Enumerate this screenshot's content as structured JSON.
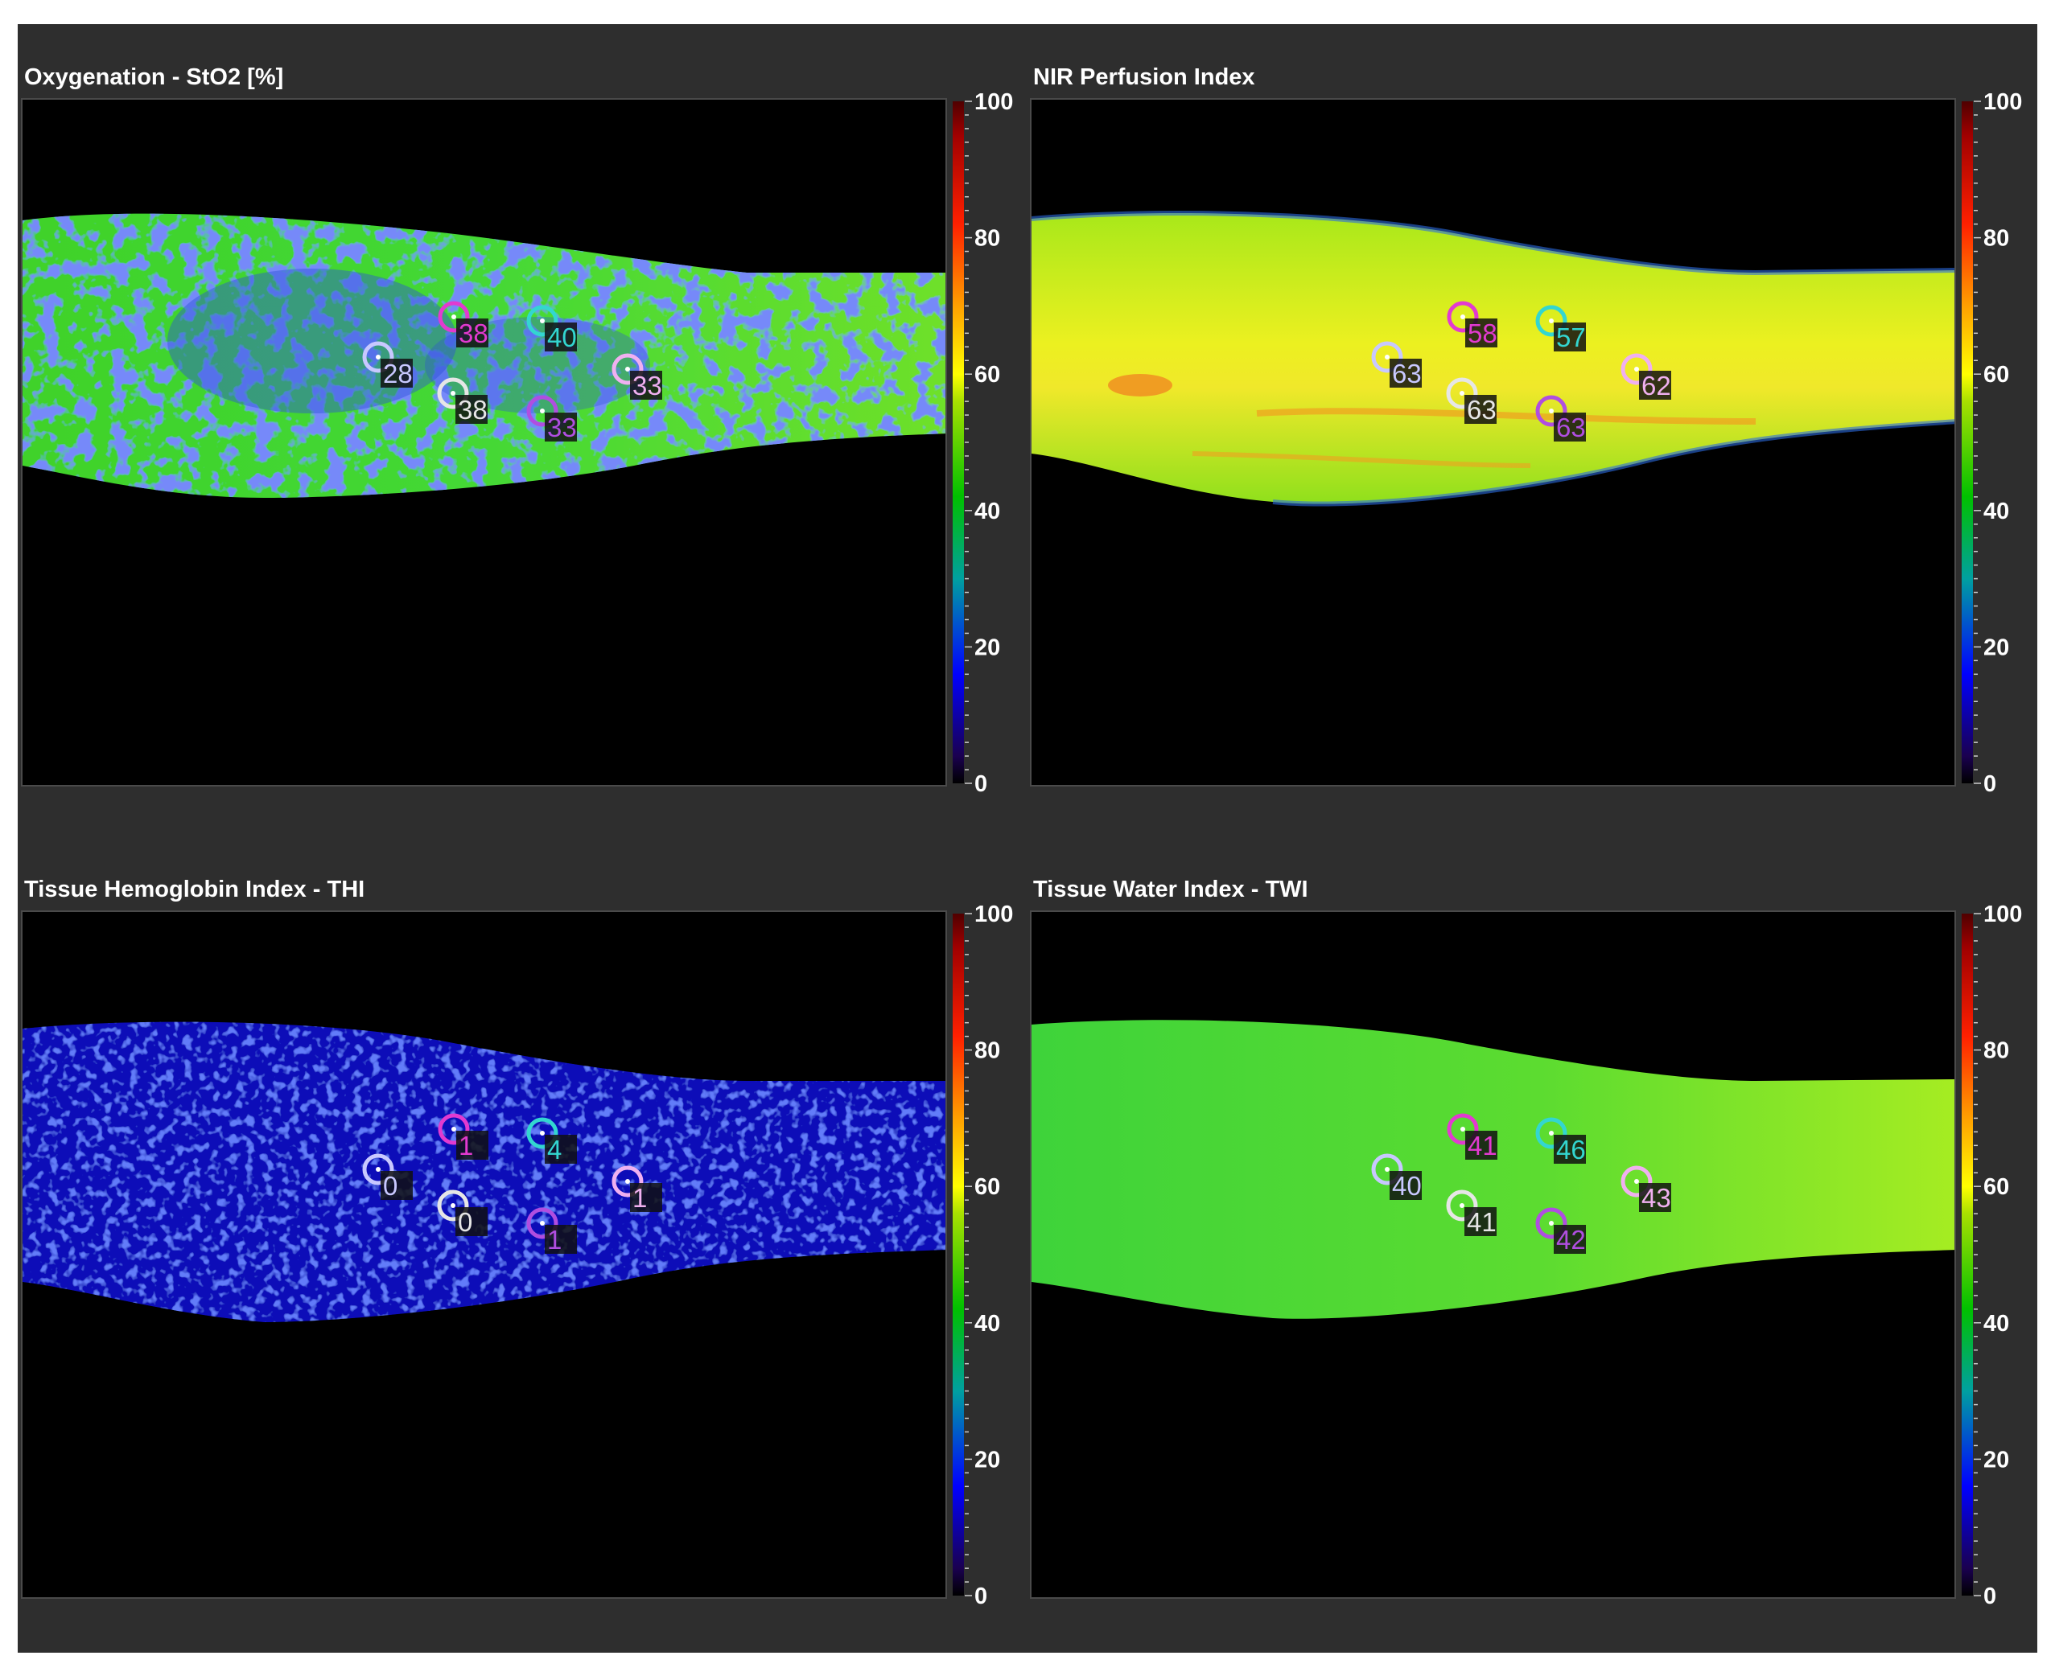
{
  "colorscale": {
    "ticks": [
      "100",
      "80",
      "60",
      "40",
      "20",
      "0"
    ]
  },
  "panels": [
    {
      "id": "sto2",
      "title": "Oxygenation - StO2 [%]",
      "tissue": "mixed-green-blue",
      "rois": [
        {
          "value": "38",
          "color": "#e23ad0"
        },
        {
          "value": "40",
          "color": "#33d6d0"
        },
        {
          "value": "28",
          "color": "#c8c8ff"
        },
        {
          "value": "33",
          "color": "#f0b0f0"
        },
        {
          "value": "38",
          "color": "#e6e6e6"
        },
        {
          "value": "33",
          "color": "#b04ee0"
        }
      ]
    },
    {
      "id": "nir",
      "title": "NIR Perfusion Index",
      "tissue": "yellow-green",
      "rois": [
        {
          "value": "58",
          "color": "#e23ad0"
        },
        {
          "value": "57",
          "color": "#33d6d0"
        },
        {
          "value": "63",
          "color": "#c8c8ff"
        },
        {
          "value": "62",
          "color": "#f0b0f0"
        },
        {
          "value": "63",
          "color": "#e6e6e6"
        },
        {
          "value": "63",
          "color": "#b04ee0"
        }
      ]
    },
    {
      "id": "thi",
      "title": "Tissue Hemoglobin Index - THI",
      "tissue": "blue",
      "rois": [
        {
          "value": "1",
          "color": "#e23ad0"
        },
        {
          "value": "4",
          "color": "#33d6d0"
        },
        {
          "value": "0",
          "color": "#c8c8ff"
        },
        {
          "value": "1",
          "color": "#f0b0f0"
        },
        {
          "value": "0",
          "color": "#e6e6e6"
        },
        {
          "value": "1",
          "color": "#b04ee0"
        }
      ]
    },
    {
      "id": "twi",
      "title": "Tissue Water Index - TWI",
      "tissue": "green",
      "rois": [
        {
          "value": "41",
          "color": "#e23ad0"
        },
        {
          "value": "46",
          "color": "#33d6d0"
        },
        {
          "value": "40",
          "color": "#c8c8ff"
        },
        {
          "value": "43",
          "color": "#f0b0f0"
        },
        {
          "value": "41",
          "color": "#e6e6e6"
        },
        {
          "value": "42",
          "color": "#b04ee0"
        }
      ]
    }
  ]
}
